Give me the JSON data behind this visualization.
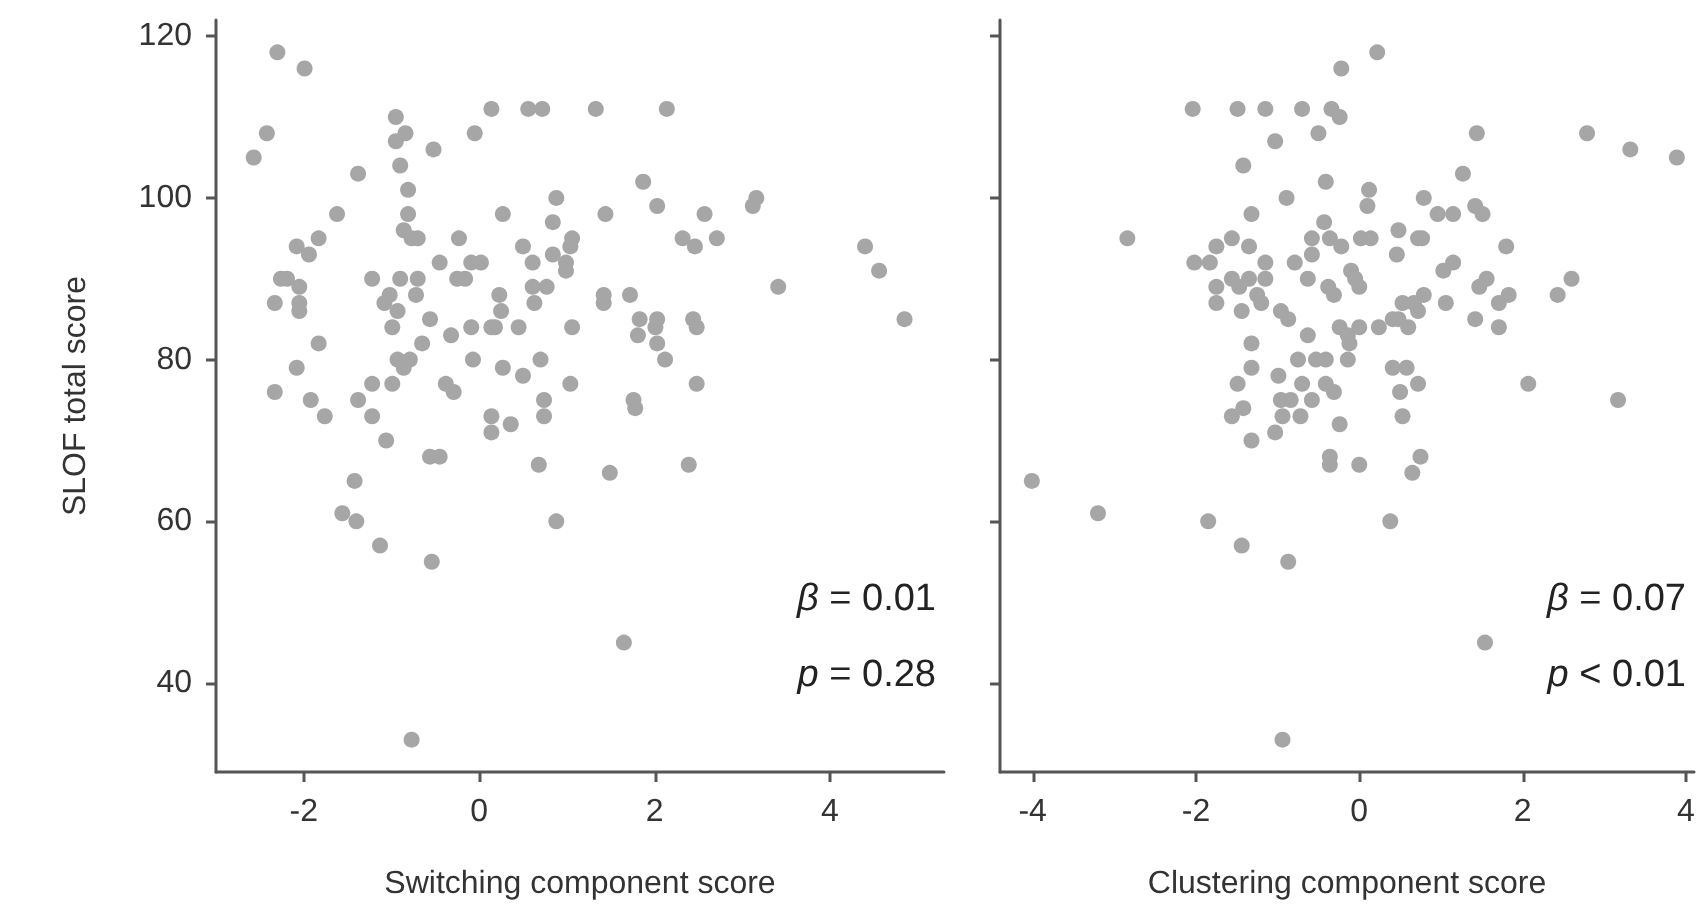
{
  "chart_data": [
    {
      "type": "scatter",
      "xlabel": "Switching component score",
      "ylabel": "SLOF total score",
      "xlim": [
        -3,
        5.3
      ],
      "xticks": [
        -2,
        0,
        2,
        4
      ],
      "ylim": [
        29,
        122
      ],
      "yticks": [
        40,
        60,
        80,
        100,
        120
      ],
      "grid": false,
      "marker": "circle",
      "annotations": [
        "β = 0.01",
        "p = 0.28"
      ],
      "series": [
        {
          "color": "#a6a6a6",
          "x": [
            -2.3,
            -1.99,
            -2.42,
            -2.57,
            -1.38,
            -0.95,
            -0.84,
            -0.95,
            -0.9,
            -0.52,
            0.14,
            0.56,
            0.72,
            1.33,
            -0.05,
            -0.81,
            -1.62,
            -0.81,
            -0.86,
            -0.77,
            -0.7,
            0.88,
            0.27,
            0.84,
            -1.83,
            -2.08,
            -1.94,
            -0.23,
            0.5,
            1.06,
            1.04,
            -0.45,
            -0.09,
            0.02,
            0.61,
            0.84,
            0.99,
            0.99,
            -2.26,
            -2.19,
            -2.05,
            -2.33,
            -2.05,
            -2.05,
            -1.22,
            -0.9,
            -0.7,
            -1.02,
            -1.08,
            -0.72,
            -0.93,
            -0.25,
            -0.16,
            0.23,
            0.25,
            0.61,
            0.77,
            0.63,
            -0.99,
            -0.56,
            -0.32,
            -0.09,
            0.14,
            0.18,
            0.45,
            1.06,
            -0.07,
            -0.65,
            0.7,
            -1.83,
            -0.93,
            -0.79,
            -0.86,
            -2.08,
            0.27,
            0.5,
            -2.33,
            -1.92,
            -1.76,
            -1.38,
            -1.22,
            -0.99,
            -1.22,
            -0.38,
            -0.29,
            1.04,
            0.74,
            0.14,
            0.14,
            0.36,
            0.74,
            -1.06,
            -0.56,
            -0.45,
            2.14,
            1.87,
            2.03,
            1.44,
            2.57,
            3.12,
            3.16,
            2.32,
            2.46,
            2.71,
            4.4,
            4.56,
            3.41,
            4.85,
            1.72,
            1.42,
            1.42,
            1.83,
            2.03,
            1.81,
            2.01,
            2.44,
            2.48,
            2.03,
            2.12,
            2.48,
            1.76,
            1.78,
            0.68,
            1.49,
            2.39,
            -1.42,
            -1.56,
            -1.4,
            -1.13,
            0.88,
            -0.54,
            1.65,
            -0.77
          ],
          "values": [
            118,
            116,
            108,
            105,
            103,
            110,
            108,
            107,
            104,
            106,
            111,
            111,
            111,
            111,
            108,
            101,
            98,
            98,
            96,
            95,
            95,
            100,
            98,
            97,
            95,
            94,
            93,
            95,
            94,
            95,
            94,
            92,
            92,
            92,
            92,
            93,
            92,
            91,
            90,
            90,
            89,
            87,
            87,
            86,
            90,
            90,
            90,
            88,
            87,
            88,
            86,
            90,
            90,
            88,
            86,
            89,
            89,
            87,
            84,
            85,
            83,
            84,
            84,
            84,
            84,
            84,
            80,
            82,
            80,
            82,
            80,
            80,
            79,
            79,
            79,
            78,
            76,
            75,
            73,
            75,
            77,
            77,
            73,
            77,
            76,
            77,
            75,
            73,
            71,
            72,
            73,
            70,
            68,
            68,
            111,
            102,
            99,
            98,
            98,
            99,
            100,
            95,
            94,
            95,
            94,
            91,
            89,
            85,
            88,
            88,
            87,
            85,
            85,
            83,
            84,
            85,
            84,
            82,
            80,
            77,
            75,
            74,
            67,
            66,
            67,
            65,
            61,
            60,
            57,
            60,
            55,
            45,
            33
          ]
        }
      ]
    },
    {
      "type": "scatter",
      "xlabel": "Clustering component score",
      "xlim": [
        -4.4,
        4.1
      ],
      "xticks": [
        -4,
        -2,
        0,
        2,
        4
      ],
      "ylim": [
        29,
        122
      ],
      "yticks": [
        40,
        60,
        80,
        100,
        120
      ],
      "tick_labels": "x",
      "grid": false,
      "marker": "circle",
      "annotations": [
        "β = 0.07",
        "p < 0.01"
      ],
      "series": [
        {
          "color": "#a6a6a6",
          "x": [
            -0.22,
            -2.04,
            -1.49,
            -1.15,
            -0.7,
            -0.34,
            -0.24,
            -1.03,
            -0.5,
            -1.42,
            -0.41,
            -0.89,
            -1.32,
            -0.43,
            -2.84,
            -1.56,
            -1.75,
            -1.35,
            -0.58,
            -0.36,
            -0.22,
            -0.58,
            -2.02,
            -1.83,
            -1.15,
            -0.79,
            -1.56,
            -1.35,
            -1.15,
            -0.63,
            -1.75,
            -1.47,
            -1.25,
            -1.2,
            -0.38,
            -0.31,
            -1.75,
            -1.44,
            -0.96,
            -0.87,
            -0.63,
            -1.32,
            -0.75,
            -0.53,
            -0.41,
            -0.24,
            -0.14,
            -1.32,
            -0.99,
            -1.49,
            -0.7,
            -0.41,
            -0.31,
            -0.96,
            -0.84,
            -0.58,
            -1.42,
            -1.56,
            -0.94,
            -0.72,
            -0.24,
            -1.32,
            -1.03,
            -0.36,
            0.22,
            1.44,
            2.79,
            3.32,
            3.89,
            1.27,
            0.12,
            0.1,
            0.79,
            0.96,
            1.15,
            1.42,
            1.51,
            0.02,
            0.14,
            0.48,
            0.72,
            0.77,
            0.46,
            1.8,
            -0.1,
            -0.05,
            0.0,
            1.03,
            1.15,
            1.56,
            1.47,
            1.83,
            2.6,
            2.43,
            0.79,
            1.06,
            1.71,
            0.53,
            0.67,
            0.72,
            0.0,
            0.24,
            0.41,
            0.48,
            0.6,
            1.42,
            1.71,
            -0.12,
            -0.14,
            0.41,
            0.58,
            0.72,
            0.5,
            2.07,
            3.17,
            0.53,
            0.75,
            -4.01,
            -3.2,
            -1.85,
            -1.44,
            -0.87,
            0.38,
            1.54,
            -0.94,
            -0.36,
            0.0,
            0.65
          ],
          "values": [
            116,
            111,
            111,
            111,
            111,
            111,
            110,
            107,
            108,
            104,
            102,
            100,
            98,
            97,
            95,
            95,
            94,
            94,
            95,
            95,
            94,
            93,
            92,
            92,
            92,
            92,
            90,
            90,
            90,
            90,
            89,
            89,
            88,
            87,
            89,
            88,
            87,
            86,
            86,
            85,
            83,
            82,
            80,
            80,
            80,
            84,
            83,
            79,
            78,
            77,
            77,
            77,
            76,
            75,
            75,
            75,
            74,
            73,
            73,
            73,
            72,
            70,
            71,
            68,
            118,
            108,
            108,
            106,
            105,
            103,
            101,
            99,
            100,
            98,
            98,
            99,
            98,
            95,
            95,
            96,
            95,
            95,
            93,
            94,
            91,
            90,
            89,
            91,
            92,
            90,
            89,
            88,
            90,
            88,
            88,
            87,
            87,
            87,
            87,
            86,
            84,
            84,
            85,
            85,
            84,
            85,
            84,
            82,
            80,
            79,
            79,
            77,
            76,
            77,
            75,
            73,
            68,
            65,
            61,
            60,
            57,
            55,
            60,
            45,
            33,
            67,
            67,
            66
          ]
        }
      ]
    }
  ]
}
